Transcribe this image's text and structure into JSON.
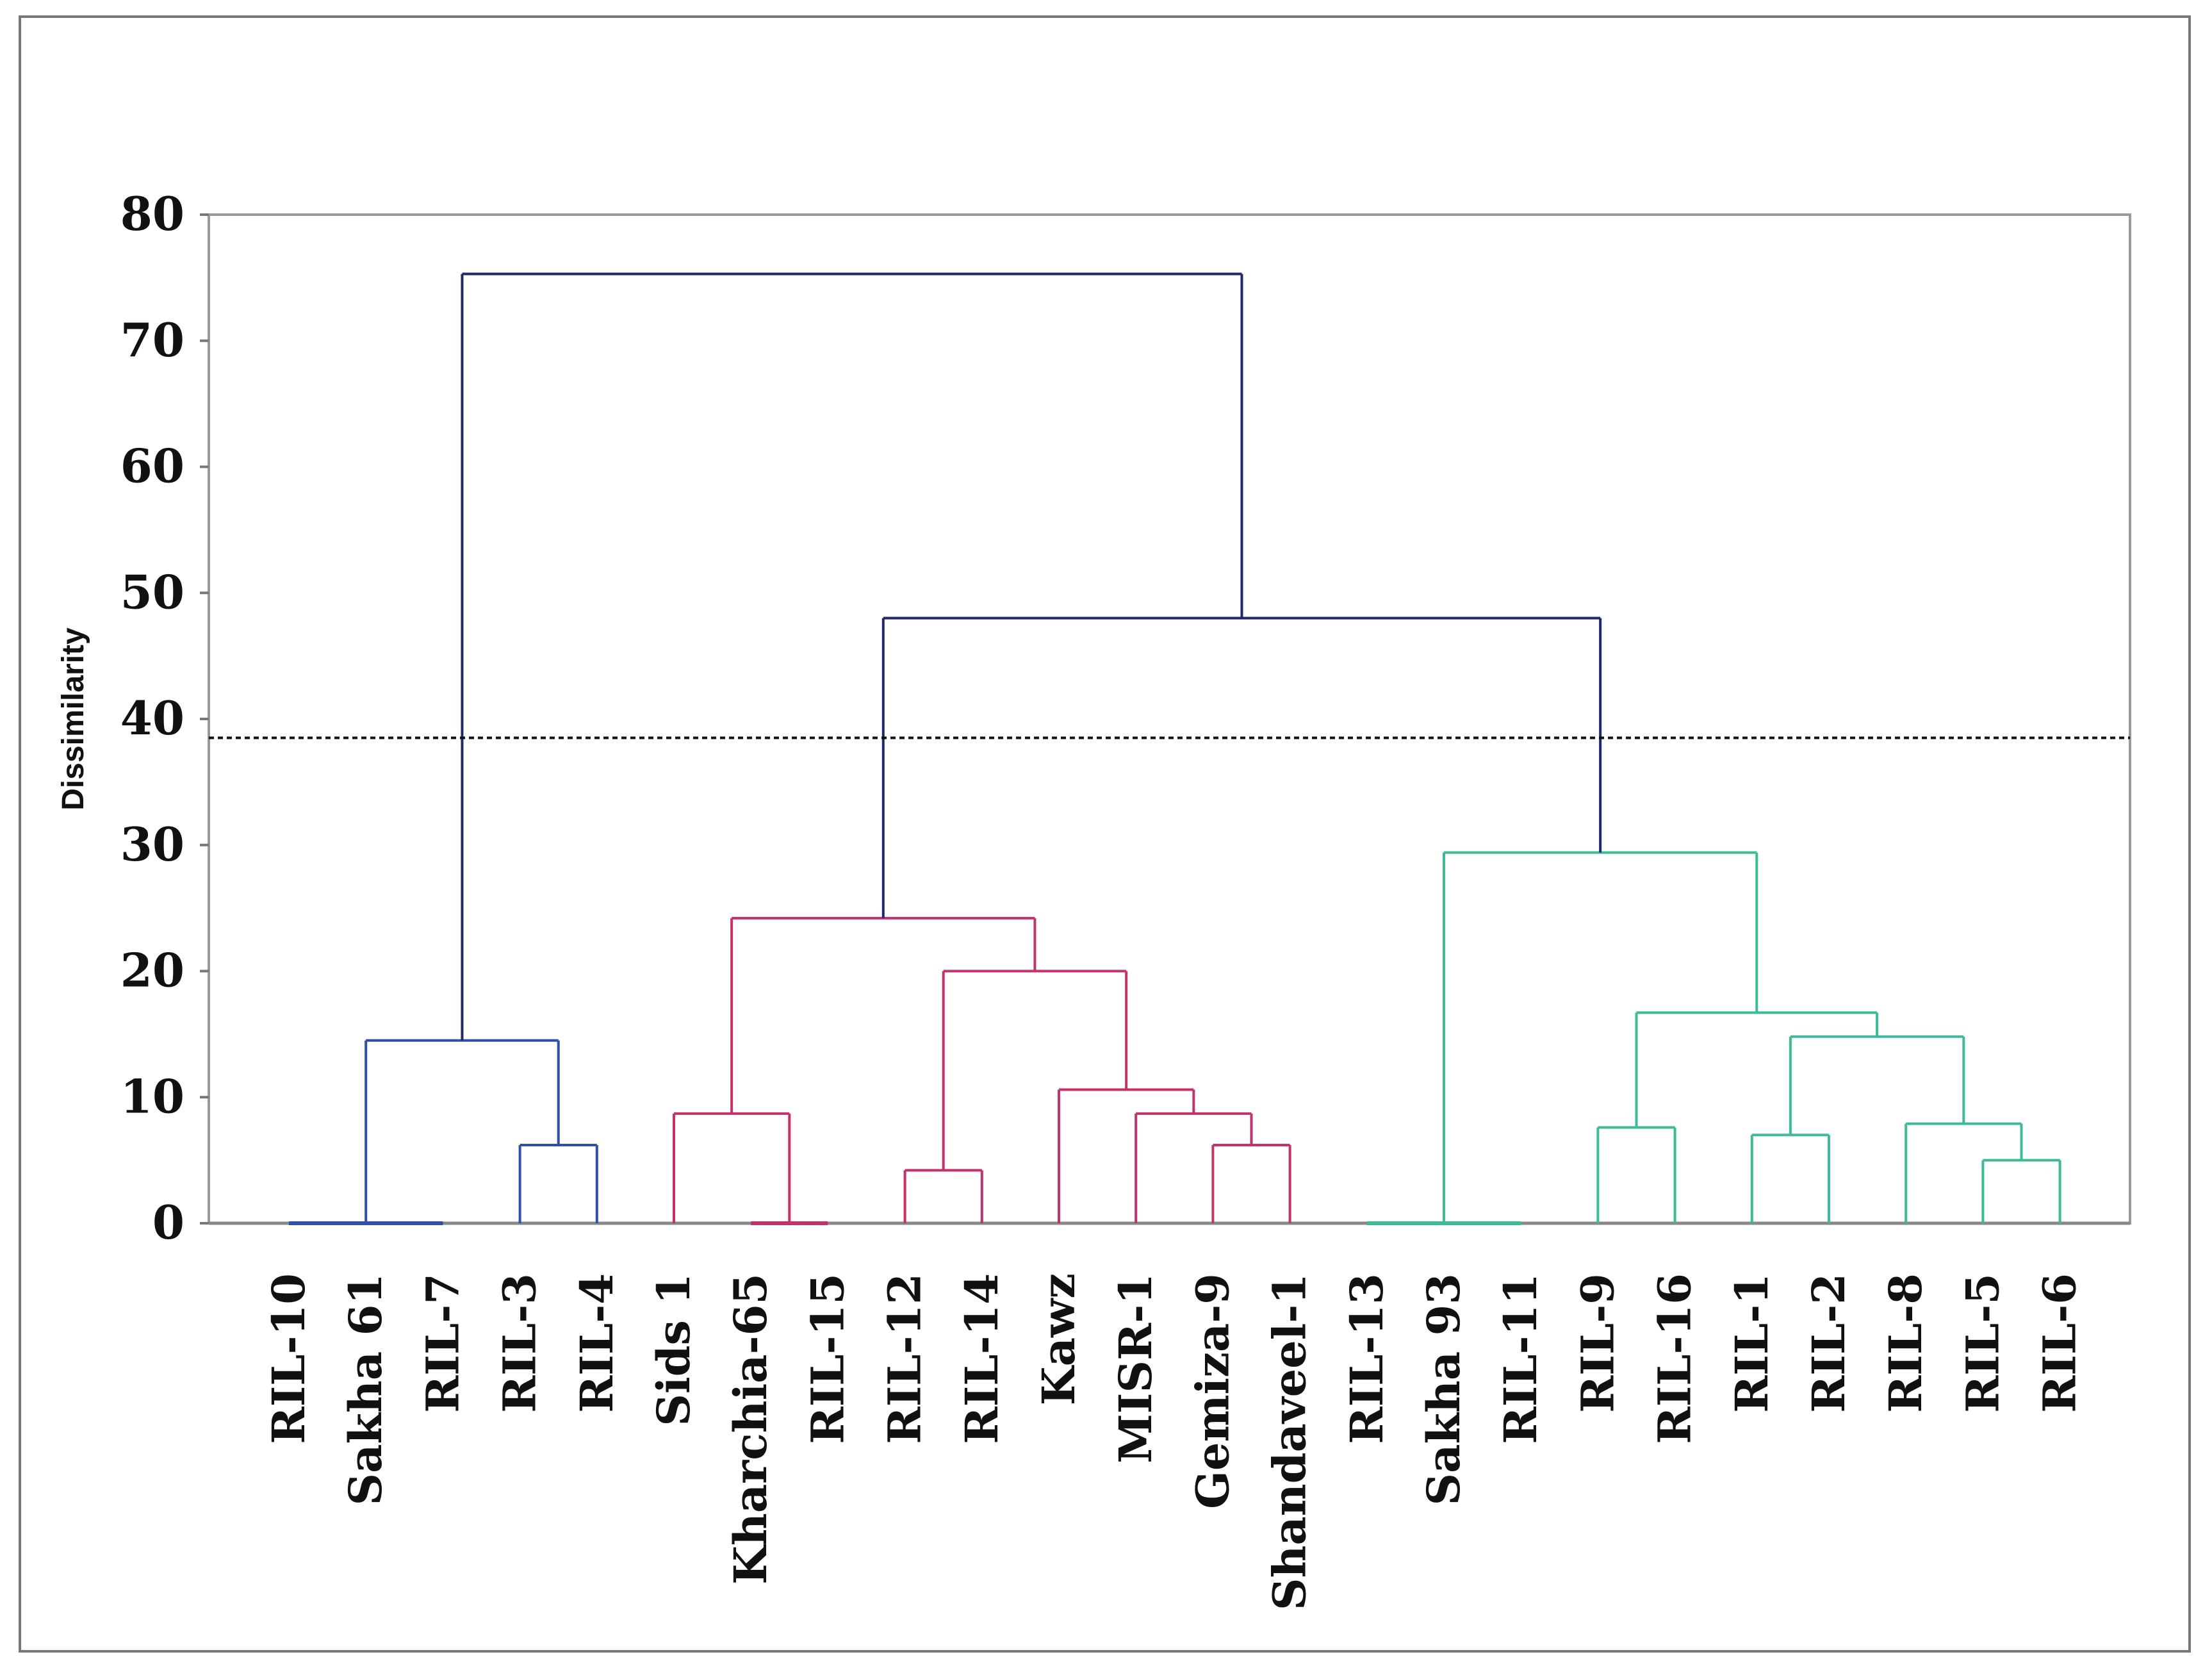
{
  "chart_data": {
    "type": "dendrogram",
    "title": "",
    "xlabel": "",
    "ylabel": "Dissimilarity",
    "ylim": [
      0,
      80
    ],
    "yticks": [
      0,
      10,
      20,
      30,
      40,
      50,
      60,
      70,
      80
    ],
    "grid": false,
    "cut_line": 38.5,
    "leaves": [
      "RIL-10",
      "Sakha 61",
      "RIL-7",
      "RIL-3",
      "RIL-4",
      "Sids 1",
      "Kharchia-65",
      "RIL-15",
      "RIL-12",
      "RIL-14",
      "Kawz",
      "MISR-1",
      "Gemiza-9",
      "Shandaveel-1",
      "RIL-13",
      "Sakha 93",
      "RIL-11",
      "RIL-9",
      "RIL-16",
      "RIL-1",
      "RIL-2",
      "RIL-8",
      "RIL-5",
      "RIL-6"
    ],
    "colors": {
      "cluster1": "#2f4fa8",
      "cluster2": "#c2326b",
      "cluster3": "#3dbb98",
      "top": "#1f2868",
      "cut_line": "#111111"
    },
    "merges": [
      {
        "id": "m1",
        "children": [
          "RIL-10",
          "Sakha 61",
          "RIL-7"
        ],
        "height": 0,
        "color": "cluster1"
      },
      {
        "id": "m2",
        "children": [
          "RIL-3",
          "RIL-4"
        ],
        "height": 6.2,
        "color": "cluster1"
      },
      {
        "id": "m3",
        "children": [
          "m1",
          "m2"
        ],
        "height": 14.5,
        "color": "cluster1"
      },
      {
        "id": "m4",
        "children": [
          "Kharchia-65",
          "RIL-15"
        ],
        "height": 0,
        "color": "cluster2"
      },
      {
        "id": "m5",
        "children": [
          "Sids 1",
          "m4"
        ],
        "height": 8.7,
        "color": "cluster2"
      },
      {
        "id": "m6",
        "children": [
          "RIL-12",
          "RIL-14"
        ],
        "height": 4.2,
        "color": "cluster2"
      },
      {
        "id": "m7",
        "children": [
          "Gemiza-9",
          "Shandaveel-1"
        ],
        "height": 6.2,
        "color": "cluster2"
      },
      {
        "id": "m8",
        "children": [
          "MISR-1",
          "m7"
        ],
        "height": 8.7,
        "color": "cluster2"
      },
      {
        "id": "m9",
        "children": [
          "Kawz",
          "m8"
        ],
        "height": 10.6,
        "color": "cluster2"
      },
      {
        "id": "m10",
        "children": [
          "m6",
          "m9"
        ],
        "height": 20.0,
        "color": "cluster2"
      },
      {
        "id": "m11",
        "children": [
          "m5",
          "m10"
        ],
        "height": 24.2,
        "color": "cluster2"
      },
      {
        "id": "m12",
        "children": [
          "RIL-13",
          "Sakha 93",
          "RIL-11"
        ],
        "height": 0,
        "color": "cluster3"
      },
      {
        "id": "m13",
        "children": [
          "RIL-9",
          "RIL-16"
        ],
        "height": 7.6,
        "color": "cluster3"
      },
      {
        "id": "m14",
        "children": [
          "RIL-1",
          "RIL-2"
        ],
        "height": 7.0,
        "color": "cluster3"
      },
      {
        "id": "m15",
        "children": [
          "RIL-5",
          "RIL-6"
        ],
        "height": 5.0,
        "color": "cluster3"
      },
      {
        "id": "m16",
        "children": [
          "RIL-8",
          "m15"
        ],
        "height": 7.9,
        "color": "cluster3"
      },
      {
        "id": "m17",
        "children": [
          "m14",
          "m16"
        ],
        "height": 14.8,
        "color": "cluster3"
      },
      {
        "id": "m18",
        "children": [
          "m13",
          "m17"
        ],
        "height": 16.7,
        "color": "cluster3"
      },
      {
        "id": "m19",
        "children": [
          "m12",
          "m18"
        ],
        "height": 29.4,
        "color": "cluster3"
      },
      {
        "id": "m20",
        "children": [
          "m11",
          "m19"
        ],
        "height": 48.0,
        "color": "top"
      },
      {
        "id": "m21",
        "children": [
          "m3",
          "m20"
        ],
        "height": 75.3,
        "color": "top"
      }
    ]
  }
}
